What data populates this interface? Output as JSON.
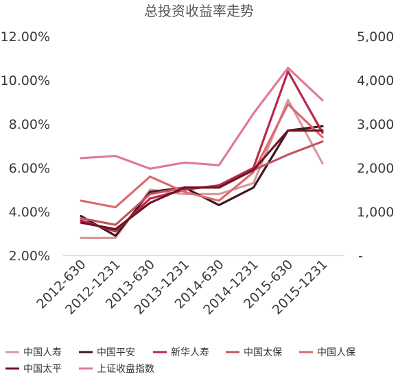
{
  "chart_data": {
    "type": "line",
    "title": "总投资收益率走势",
    "categories": [
      "2012-630",
      "2012-1231",
      "2013-630",
      "2013-1231",
      "2014-630",
      "2014-1231",
      "2015-630",
      "2015-1231"
    ],
    "y_left": {
      "ticks": [
        "2.00%",
        "4.00%",
        "6.00%",
        "8.00%",
        "10.00%",
        "12.00%"
      ],
      "ylim": [
        2,
        12
      ]
    },
    "y_right": {
      "ticks": [
        "-",
        "1,000",
        "2,000",
        "3,000",
        "4,000",
        "5,000"
      ],
      "ylim": [
        0,
        5000
      ]
    },
    "grid": false,
    "legend": "bottom",
    "series": [
      {
        "name": "中国人寿",
        "axis": "left",
        "color": "#d99a9d",
        "values": [
          2.8,
          2.8,
          5.0,
          4.8,
          4.8,
          5.3,
          9.1,
          6.2
        ]
      },
      {
        "name": "中国平安",
        "axis": "left",
        "color": "#3d1a1e",
        "values": [
          3.8,
          2.9,
          4.9,
          5.1,
          4.3,
          5.1,
          7.7,
          7.9
        ]
      },
      {
        "name": "新华人寿",
        "axis": "left",
        "color": "#b8284a",
        "values": [
          3.6,
          3.1,
          4.6,
          5.0,
          5.2,
          6.0,
          10.4,
          7.6
        ]
      },
      {
        "name": "中国太保",
        "axis": "left",
        "color": "#c4545e",
        "values": [
          3.7,
          3.4,
          4.8,
          5.1,
          5.1,
          5.9,
          6.6,
          7.2
        ]
      },
      {
        "name": "中国人保",
        "axis": "left",
        "color": "#db6a6f",
        "values": [
          4.5,
          4.2,
          5.6,
          4.9,
          4.5,
          5.8,
          8.9,
          7.4
        ]
      },
      {
        "name": "中国太平",
        "axis": "left",
        "color": "#6e1425",
        "values": [
          3.5,
          3.2,
          4.4,
          5.1,
          5.1,
          5.9,
          7.7,
          7.7
        ]
      },
      {
        "name": "上证收盘指数",
        "axis": "right",
        "color": "#e07a96",
        "values": [
          2220,
          2270,
          1980,
          2120,
          2060,
          3240,
          4280,
          3540
        ]
      }
    ]
  }
}
